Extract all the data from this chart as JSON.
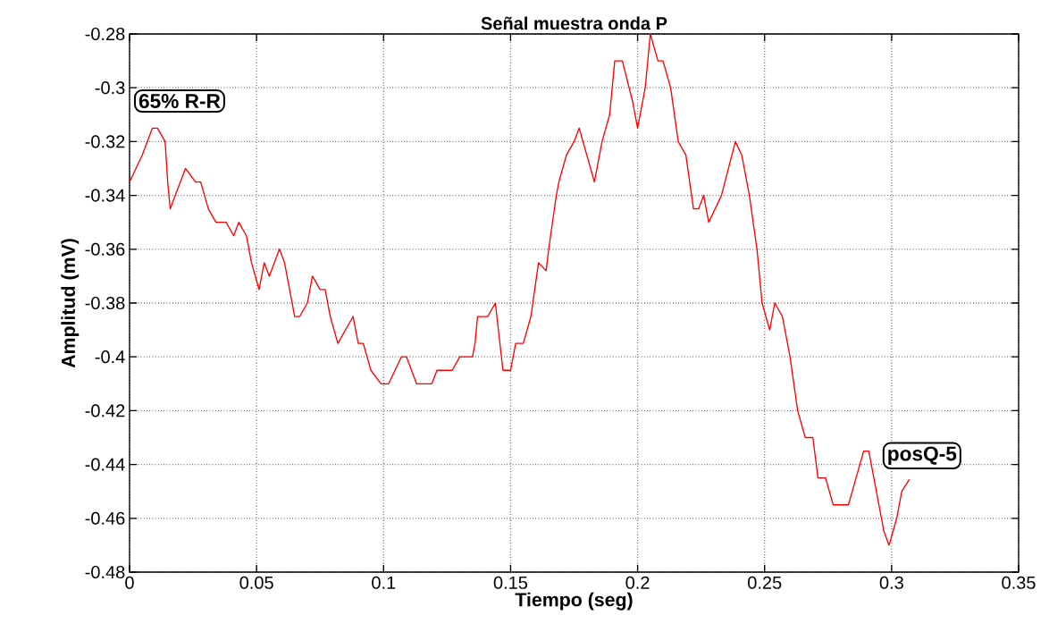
{
  "chart_data": {
    "type": "line",
    "title": "Señal muestra onda P",
    "xlabel": "Tiempo (seg)",
    "ylabel": "Amplitud (mV)",
    "xlim": [
      0,
      0.35
    ],
    "ylim": [
      -0.48,
      -0.28
    ],
    "xticks": [
      0,
      0.05,
      0.1,
      0.15,
      0.2,
      0.25,
      0.3,
      0.35
    ],
    "yticks": [
      -0.48,
      -0.46,
      -0.44,
      -0.42,
      -0.4,
      -0.38,
      -0.36,
      -0.34,
      -0.32,
      -0.3,
      -0.28
    ],
    "grid": true,
    "line_style": "solid",
    "marker": "none",
    "annotations": [
      "65% R-R",
      "posQ-5"
    ],
    "series": [
      {
        "color": "#ff0000",
        "x": [
          0,
          0.005,
          0.009,
          0.011,
          0.014,
          0.015,
          0.016,
          0.018,
          0.022,
          0.026,
          0.028,
          0.031,
          0.034,
          0.038,
          0.041,
          0.043,
          0.046,
          0.048,
          0.051,
          0.053,
          0.055,
          0.059,
          0.061,
          0.063,
          0.065,
          0.067,
          0.07,
          0.072,
          0.075,
          0.077,
          0.079,
          0.082,
          0.088,
          0.09,
          0.092,
          0.095,
          0.099,
          0.102,
          0.107,
          0.109,
          0.113,
          0.119,
          0.121,
          0.127,
          0.13,
          0.135,
          0.136,
          0.137,
          0.141,
          0.144,
          0.147,
          0.15,
          0.152,
          0.155,
          0.158,
          0.161,
          0.164,
          0.165,
          0.168,
          0.169,
          0.172,
          0.175,
          0.177,
          0.183,
          0.186,
          0.189,
          0.191,
          0.194,
          0.198,
          0.2,
          0.203,
          0.205,
          0.208,
          0.21,
          0.213,
          0.216,
          0.219,
          0.222,
          0.224,
          0.226,
          0.228,
          0.233,
          0.2385,
          0.241,
          0.244,
          0.247,
          0.249,
          0.252,
          0.254,
          0.257,
          0.26,
          0.263,
          0.266,
          0.269,
          0.271,
          0.274,
          0.277,
          0.283,
          0.286,
          0.289,
          0.291,
          0.294,
          0.297,
          0.299,
          0.302,
          0.304,
          0.307
        ],
        "values": [
          -0.335,
          -0.325,
          -0.315,
          -0.315,
          -0.32,
          -0.335,
          -0.345,
          -0.34,
          -0.33,
          -0.335,
          -0.335,
          -0.345,
          -0.35,
          -0.35,
          -0.355,
          -0.35,
          -0.355,
          -0.365,
          -0.375,
          -0.365,
          -0.37,
          -0.36,
          -0.365,
          -0.375,
          -0.385,
          -0.385,
          -0.38,
          -0.37,
          -0.375,
          -0.375,
          -0.385,
          -0.395,
          -0.385,
          -0.395,
          -0.395,
          -0.405,
          -0.41,
          -0.41,
          -0.4,
          -0.4,
          -0.41,
          -0.41,
          -0.405,
          -0.405,
          -0.4,
          -0.4,
          -0.395,
          -0.385,
          -0.385,
          -0.38,
          -0.405,
          -0.405,
          -0.395,
          -0.395,
          -0.385,
          -0.365,
          -0.368,
          -0.36,
          -0.34,
          -0.335,
          -0.325,
          -0.32,
          -0.315,
          -0.335,
          -0.32,
          -0.31,
          -0.29,
          -0.29,
          -0.305,
          -0.315,
          -0.3,
          -0.28,
          -0.29,
          -0.29,
          -0.3,
          -0.32,
          -0.325,
          -0.345,
          -0.345,
          -0.34,
          -0.35,
          -0.34,
          -0.32,
          -0.325,
          -0.34,
          -0.36,
          -0.38,
          -0.39,
          -0.38,
          -0.385,
          -0.4,
          -0.42,
          -0.43,
          -0.43,
          -0.445,
          -0.445,
          -0.455,
          -0.455,
          -0.445,
          -0.435,
          -0.435,
          -0.45,
          -0.465,
          -0.47,
          -0.46,
          -0.45,
          -0.4455
        ]
      }
    ]
  }
}
